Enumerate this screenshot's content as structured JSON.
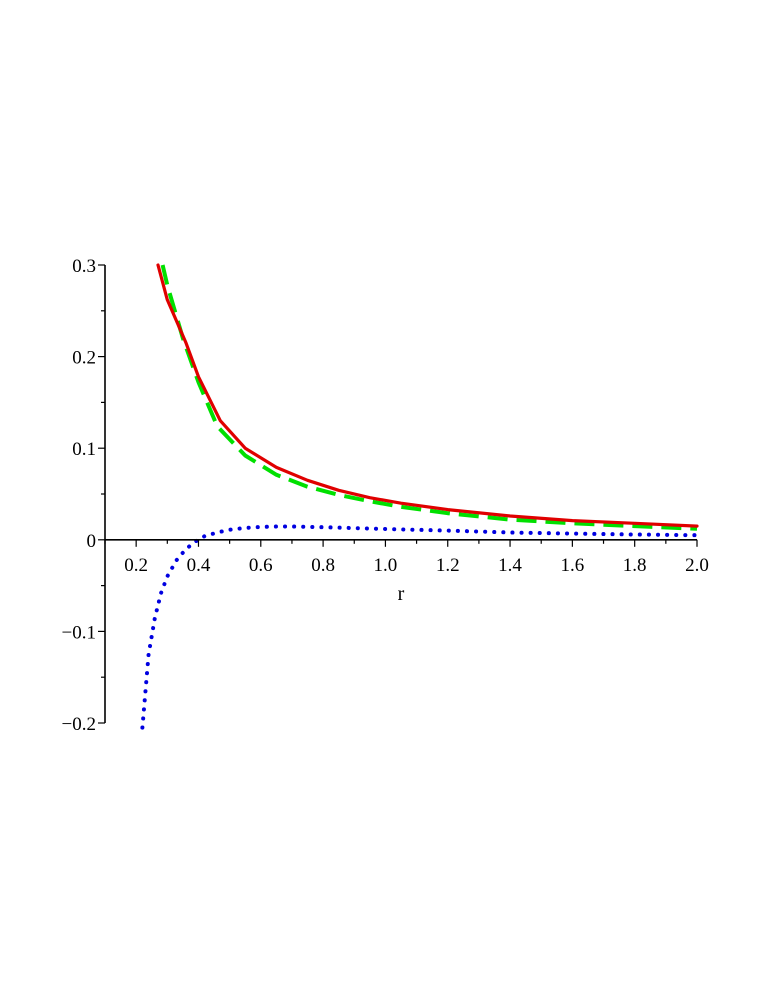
{
  "chart_data": {
    "type": "line",
    "title": "",
    "xlabel": "r",
    "ylabel": "",
    "xlim": [
      0.1,
      2.0
    ],
    "ylim": [
      -0.2,
      0.3
    ],
    "grid": false,
    "x_ticks": [
      0.2,
      0.4,
      0.6,
      0.8,
      1.0,
      1.2,
      1.4,
      1.6,
      1.8,
      2.0
    ],
    "x_tick_labels": [
      "0.2",
      "0.4",
      "0.6",
      "0.8",
      "1.0",
      "1.2",
      "1.4",
      "1.6",
      "1.8",
      "2.0"
    ],
    "y_ticks": [
      -0.2,
      -0.1,
      0,
      0.1,
      0.2,
      0.3
    ],
    "y_tick_labels": [
      "−0.2",
      "−0.1",
      "0",
      "0.1",
      "0.2",
      "0.3"
    ],
    "series": [
      {
        "style": "solid",
        "color": "#e00000",
        "x": [
          0.27,
          0.3,
          0.36,
          0.4,
          0.47,
          0.55,
          0.65,
          0.75,
          0.85,
          0.95,
          1.05,
          1.2,
          1.4,
          1.6,
          1.8,
          2.0
        ],
        "y": [
          0.3,
          0.262,
          0.215,
          0.178,
          0.13,
          0.1,
          0.079,
          0.065,
          0.054,
          0.046,
          0.04,
          0.033,
          0.026,
          0.021,
          0.018,
          0.015
        ]
      },
      {
        "style": "dashed",
        "color": "#00e000",
        "x": [
          0.285,
          0.3,
          0.35,
          0.4,
          0.46,
          0.55,
          0.65,
          0.75,
          0.85,
          0.95,
          1.05,
          1.2,
          1.4,
          1.6,
          1.8,
          2.0
        ],
        "y": [
          0.3,
          0.278,
          0.22,
          0.172,
          0.124,
          0.092,
          0.071,
          0.058,
          0.049,
          0.042,
          0.036,
          0.029,
          0.022,
          0.018,
          0.015,
          0.012
        ]
      },
      {
        "style": "dotted",
        "color": "#0000e0",
        "x": [
          0.22,
          0.24,
          0.26,
          0.28,
          0.3,
          0.33,
          0.36,
          0.39,
          0.42,
          0.46,
          0.5,
          0.55,
          0.6,
          0.65,
          0.7,
          0.8,
          0.9,
          1.0,
          1.2,
          1.4,
          1.6,
          1.8,
          2.0
        ],
        "y": [
          -0.205,
          -0.125,
          -0.085,
          -0.058,
          -0.04,
          -0.022,
          -0.01,
          -0.002,
          0.004,
          0.008,
          0.011,
          0.013,
          0.014,
          0.0145,
          0.0145,
          0.0138,
          0.0128,
          0.0118,
          0.01,
          0.008,
          0.0068,
          0.0058,
          0.005
        ]
      }
    ]
  }
}
